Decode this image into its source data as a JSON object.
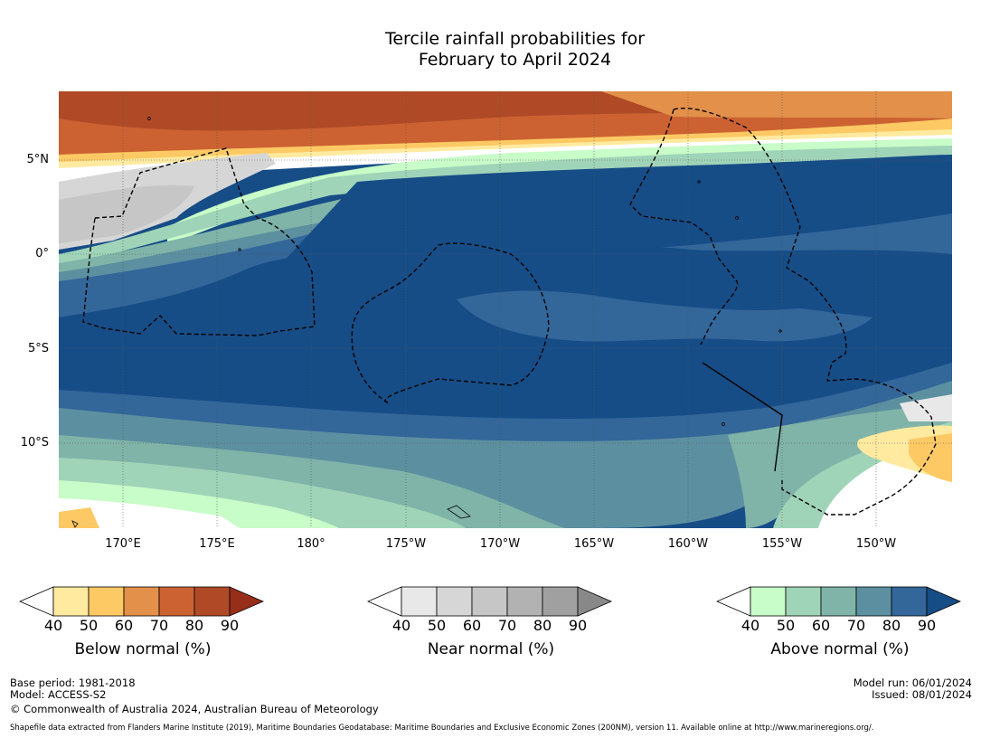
{
  "title": {
    "line1": "Tercile rainfall probabilities for",
    "line2": "February to April 2024"
  },
  "map": {
    "lat_labels": [
      "5°N",
      "0°",
      "5°S",
      "10°S"
    ],
    "lon_labels": [
      "170°E",
      "175°E",
      "180°",
      "175°W",
      "170°W",
      "165°W",
      "160°W",
      "155°W",
      "150°W"
    ]
  },
  "legends": [
    {
      "title": "Below normal (%)",
      "ticks": [
        "40",
        "50",
        "60",
        "70",
        "80",
        "90"
      ],
      "colors": [
        "#ffffff",
        "#ffeaa0",
        "#fdc964",
        "#e2904a",
        "#cc6232",
        "#b04a26",
        "#962e1a"
      ]
    },
    {
      "title": "Near normal (%)",
      "ticks": [
        "40",
        "50",
        "60",
        "70",
        "80",
        "90"
      ],
      "colors": [
        "#ffffff",
        "#e8e8e8",
        "#d6d6d6",
        "#c6c6c6",
        "#b2b2b2",
        "#a0a0a0",
        "#888888"
      ]
    },
    {
      "title": "Above normal (%)",
      "ticks": [
        "40",
        "50",
        "60",
        "70",
        "80",
        "90"
      ],
      "colors": [
        "#ffffff",
        "#c8fcc8",
        "#a0d4b8",
        "#80b4a8",
        "#5c90a0",
        "#336699",
        "#174d87"
      ]
    }
  ],
  "footer": {
    "base_period": "Base period: 1981-2018",
    "model": "Model: ACCESS-S2",
    "copyright": "© Commonwealth of Australia 2024, Australian Bureau of Meteorology",
    "model_run": "Model run: 06/01/2024",
    "issued": "Issued: 08/01/2024",
    "shapefile": "Shapefile data extracted from Flanders Marine Institute (2019), Maritime Boundaries Geodatabase: Maritime Boundaries and Exclusive Economic Zones (200NM), version 11. Available online at http://www.marineregions.org/."
  }
}
